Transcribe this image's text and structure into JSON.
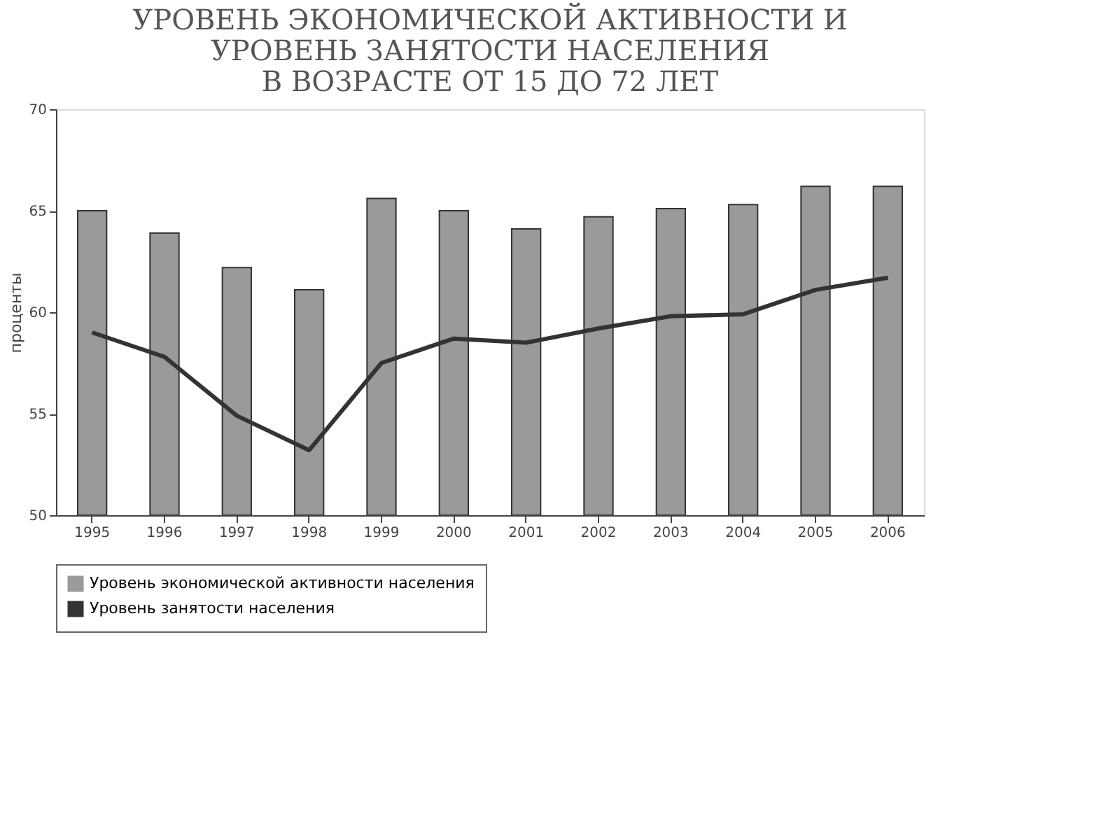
{
  "chart_data": {
    "type": "bar",
    "title": [
      "УРОВЕНЬ ЭКОНОМИЧЕСКОЙ АКТИВНОСТИ И",
      "УРОВЕНЬ ЗАНЯТОСТИ НАСЕЛЕНИЯ",
      "В ВОЗРАСТЕ ОТ 15 ДО 72 ЛЕТ"
    ],
    "ylabel": "проценты",
    "categories": [
      "1995",
      "1996",
      "1997",
      "1998",
      "1999",
      "2000",
      "2001",
      "2002",
      "2003",
      "2004",
      "2005",
      "2006"
    ],
    "series": [
      {
        "name": "Уровень экономической активности населения",
        "color": "#9a9a9a",
        "values": [
          65.0,
          63.9,
          62.2,
          61.1,
          65.6,
          65.0,
          64.1,
          64.7,
          65.1,
          65.3,
          66.2,
          66.2
        ]
      },
      {
        "name": "Уровень занятости населения",
        "type": "line",
        "color": "#333333",
        "values": [
          59.0,
          57.8,
          54.9,
          53.2,
          57.5,
          58.7,
          58.5,
          59.2,
          59.8,
          59.9,
          61.1,
          61.7
        ]
      }
    ],
    "ylim": [
      50,
      70
    ],
    "yticks": [
      50,
      55,
      60,
      65,
      70
    ],
    "grid": false,
    "legend": "bottom",
    "marker": "none"
  }
}
